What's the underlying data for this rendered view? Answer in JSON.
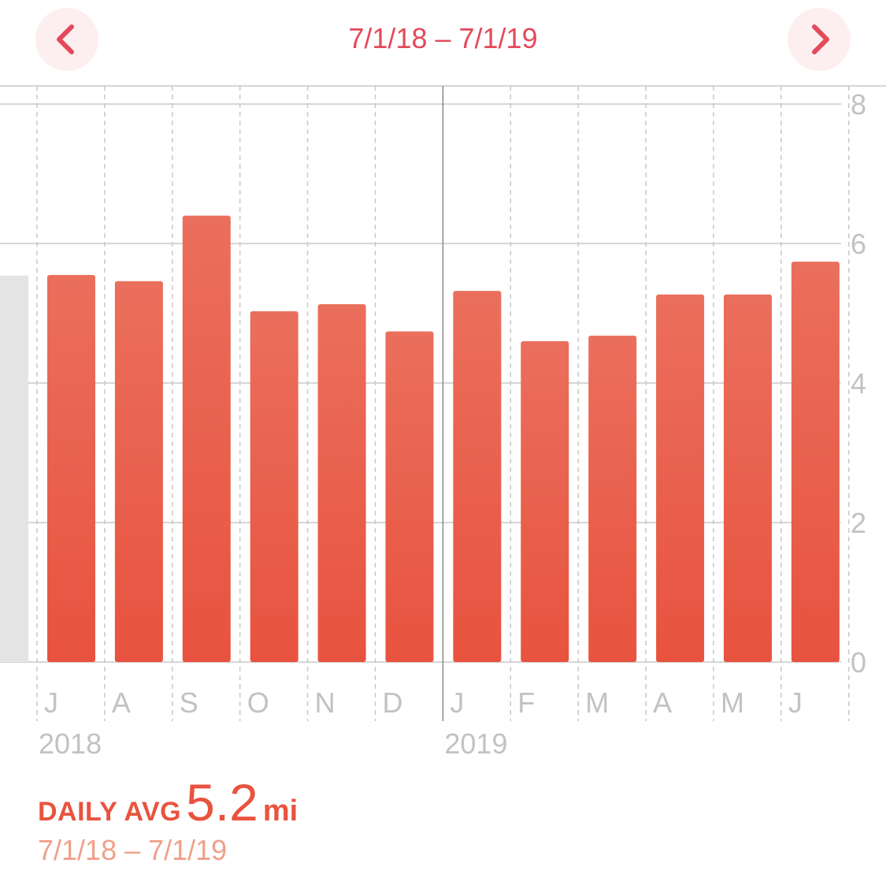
{
  "header": {
    "range_title": "7/1/18 – 7/1/19",
    "prev_icon": "chevron-left-icon",
    "next_icon": "chevron-right-icon"
  },
  "colors": {
    "accent": "#e34a5b",
    "bar_top": "#ea6f5c",
    "bar_bottom": "#e8533f",
    "bar_inactive": "#e4e4e4",
    "grid": "#c8c8c8",
    "label": "#c2c2c2"
  },
  "chart_data": {
    "type": "bar",
    "categories": [
      "J",
      "A",
      "S",
      "O",
      "N",
      "D",
      "J",
      "F",
      "M",
      "A",
      "M",
      "J"
    ],
    "years": [
      {
        "label": "2018",
        "start_index": 0
      },
      {
        "label": "2019",
        "start_index": 6
      }
    ],
    "series": [
      {
        "values": [
          5.55,
          5.46,
          6.4,
          5.03,
          5.13,
          4.74,
          5.32,
          4.6,
          4.68,
          5.27,
          5.27,
          5.74
        ]
      }
    ],
    "partial_previous_value": 5.54,
    "y_ticks": [
      0,
      2,
      4,
      6,
      8
    ],
    "ylim": [
      0,
      8
    ],
    "y_axis_side": "right",
    "grid": true
  },
  "summary": {
    "label": "DAILY AVG",
    "value": "5.2",
    "unit": "mi",
    "range": "7/1/18 – 7/1/19"
  }
}
